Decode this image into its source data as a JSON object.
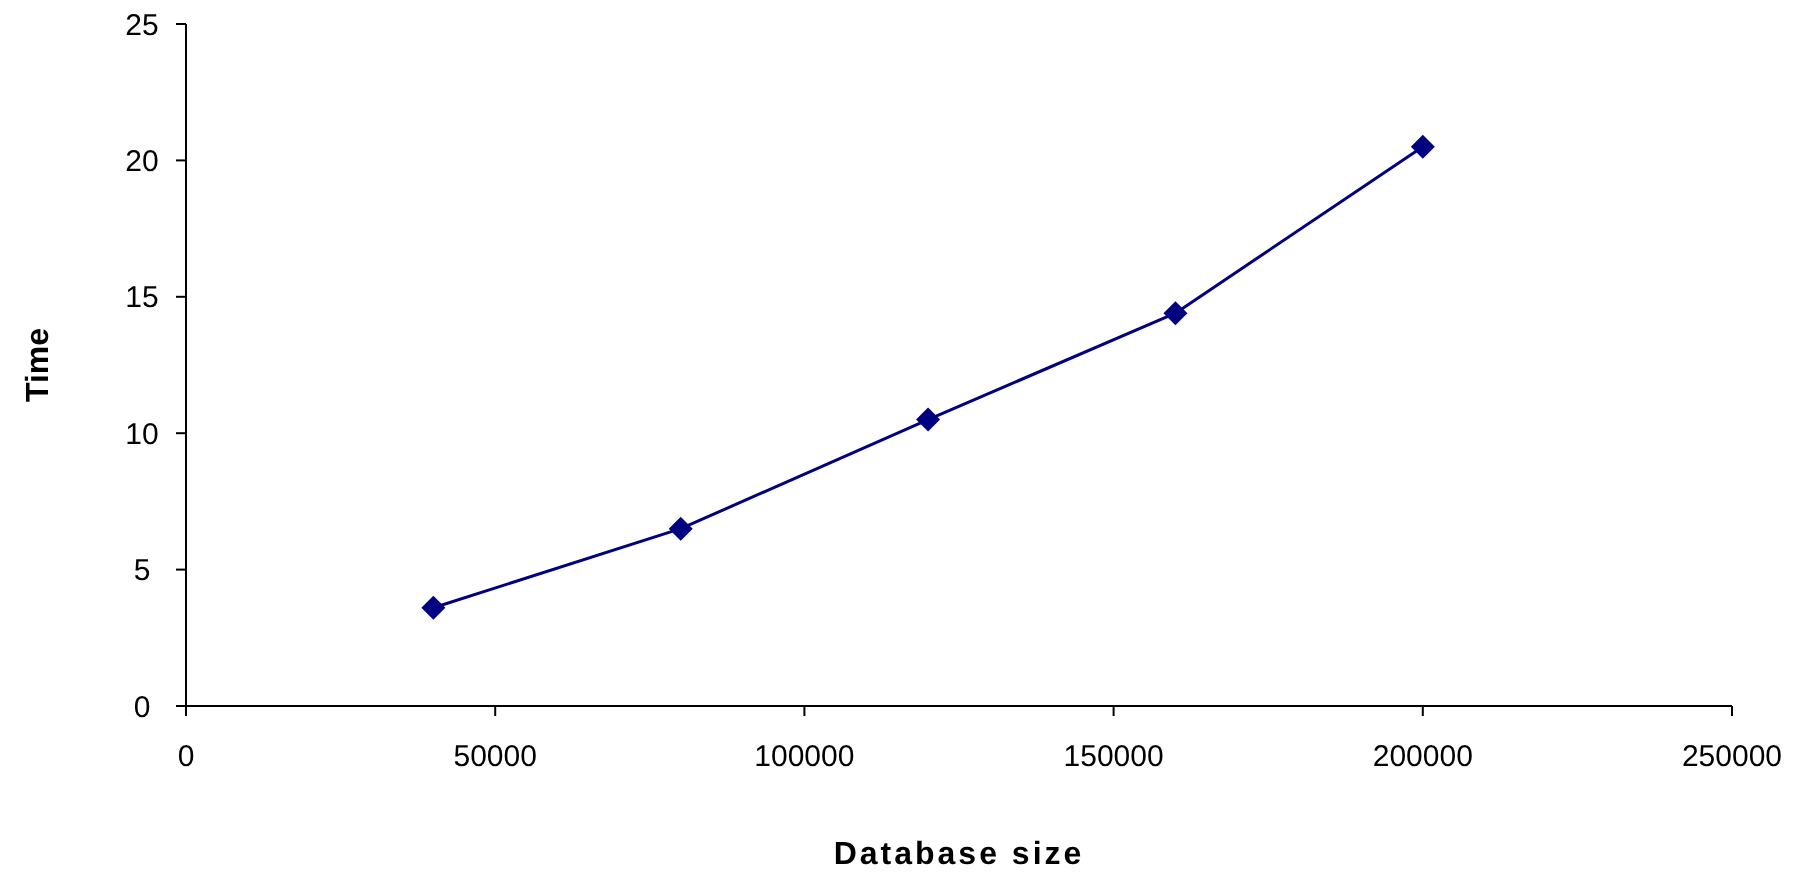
{
  "chart_data": {
    "type": "line",
    "xlabel": "Database size",
    "ylabel": "Time",
    "x": [
      40000,
      80000,
      120000,
      160000,
      200000
    ],
    "series": [
      {
        "color": "#000080",
        "values": [
          3.6,
          6.5,
          10.5,
          14.4,
          20.5
        ]
      }
    ],
    "xlim": [
      0,
      250000
    ],
    "xticks": [
      0,
      50000,
      100000,
      150000,
      200000,
      250000
    ],
    "ylim": [
      0,
      25
    ],
    "yticks": [
      0,
      5,
      10,
      15,
      20,
      25
    ],
    "grid": false,
    "marker": "diamond",
    "line_style": "solid"
  }
}
